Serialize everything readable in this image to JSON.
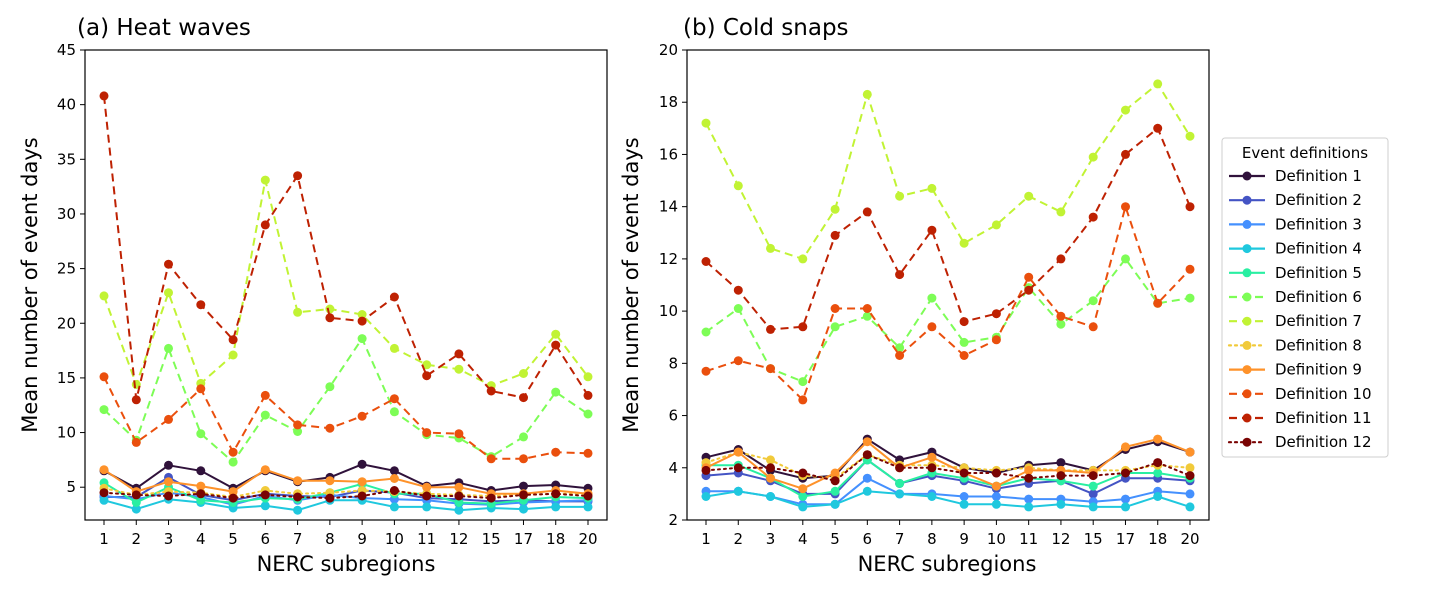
{
  "chart_data": [
    {
      "type": "line",
      "title": "(a) Heat waves",
      "xlabel": "NERC subregions",
      "ylabel": "Mean number of event days",
      "categories": [
        "1",
        "2",
        "3",
        "4",
        "5",
        "6",
        "7",
        "8",
        "9",
        "10",
        "11",
        "12",
        "15",
        "17",
        "18",
        "20"
      ],
      "ylim": [
        2,
        45
      ],
      "yticks": [
        5,
        10,
        15,
        20,
        25,
        30,
        35,
        40,
        45
      ],
      "grid": false,
      "series": [
        {
          "name": "Definition 1",
          "values": [
            6.5,
            4.9,
            7.0,
            6.5,
            4.9,
            6.5,
            5.5,
            5.9,
            7.1,
            6.5,
            5.1,
            5.4,
            4.7,
            5.1,
            5.2,
            4.9
          ]
        },
        {
          "name": "Definition 2",
          "values": [
            4.1,
            4.1,
            5.9,
            4.3,
            3.8,
            4.4,
            4.2,
            4.1,
            4.7,
            4.5,
            4.0,
            3.9,
            3.7,
            3.8,
            3.7,
            3.7
          ]
        },
        {
          "name": "Definition 3",
          "values": [
            4.2,
            3.9,
            4.5,
            4.1,
            3.4,
            4.2,
            3.8,
            4.3,
            4.0,
            3.9,
            3.8,
            3.5,
            3.4,
            3.6,
            3.7,
            3.8
          ]
        },
        {
          "name": "Definition 4",
          "values": [
            3.8,
            3.0,
            3.9,
            3.6,
            3.1,
            3.3,
            2.9,
            3.8,
            3.8,
            3.2,
            3.2,
            2.9,
            3.1,
            3.0,
            3.2,
            3.2
          ]
        },
        {
          "name": "Definition 5",
          "values": [
            5.4,
            3.6,
            5.0,
            3.8,
            3.6,
            4.0,
            3.9,
            4.5,
            5.3,
            4.4,
            4.4,
            3.6,
            3.5,
            3.8,
            4.1,
            4.0
          ]
        },
        {
          "name": "Definition 6",
          "values": [
            12.1,
            9.3,
            17.7,
            9.9,
            7.3,
            11.6,
            10.1,
            14.2,
            18.6,
            11.9,
            9.8,
            9.5,
            7.8,
            9.6,
            13.7,
            11.7
          ]
        },
        {
          "name": "Definition 7",
          "values": [
            22.5,
            14.4,
            22.8,
            14.5,
            17.1,
            33.1,
            21.0,
            21.3,
            20.8,
            17.7,
            16.2,
            15.8,
            14.3,
            15.4,
            19.0,
            15.1
          ]
        },
        {
          "name": "Definition 8",
          "values": [
            4.9,
            4.3,
            4.6,
            4.5,
            4.1,
            4.7,
            4.4,
            4.5,
            4.7,
            4.6,
            4.4,
            4.3,
            4.2,
            4.3,
            4.4,
            4.4
          ]
        },
        {
          "name": "Definition 9",
          "values": [
            6.6,
            4.6,
            5.5,
            5.1,
            4.6,
            6.6,
            5.6,
            5.6,
            5.5,
            5.8,
            5.0,
            5.0,
            4.4,
            4.4,
            4.7,
            4.4
          ]
        },
        {
          "name": "Definition 10",
          "values": [
            15.1,
            9.1,
            11.2,
            14.0,
            8.2,
            13.4,
            10.7,
            10.4,
            11.5,
            13.1,
            10.0,
            9.9,
            7.6,
            7.6,
            8.2,
            8.1
          ]
        },
        {
          "name": "Definition 11",
          "values": [
            40.8,
            13.0,
            25.4,
            21.7,
            18.5,
            29.0,
            33.5,
            20.5,
            20.2,
            22.4,
            15.2,
            17.2,
            13.8,
            13.2,
            18.0,
            13.4
          ]
        },
        {
          "name": "Definition 12",
          "values": [
            4.5,
            4.3,
            4.2,
            4.4,
            4.0,
            4.3,
            4.1,
            4.0,
            4.2,
            4.7,
            4.2,
            4.2,
            4.0,
            4.3,
            4.4,
            4.2
          ]
        }
      ]
    },
    {
      "type": "line",
      "title": "(b) Cold snaps",
      "xlabel": "NERC subregions",
      "ylabel": "Mean number of event days",
      "categories": [
        "1",
        "2",
        "3",
        "4",
        "5",
        "6",
        "7",
        "8",
        "9",
        "10",
        "11",
        "12",
        "15",
        "17",
        "18",
        "20"
      ],
      "ylim": [
        2,
        20
      ],
      "yticks": [
        2,
        4,
        6,
        8,
        10,
        12,
        14,
        16,
        18,
        20
      ],
      "grid": false,
      "series": [
        {
          "name": "Definition 1",
          "values": [
            4.4,
            4.7,
            3.9,
            3.6,
            3.7,
            5.1,
            4.3,
            4.6,
            4.0,
            3.8,
            4.1,
            4.2,
            3.9,
            4.7,
            5.0,
            4.6
          ]
        },
        {
          "name": "Definition 2",
          "values": [
            3.7,
            3.8,
            3.5,
            3.0,
            3.0,
            4.3,
            3.4,
            3.7,
            3.5,
            3.2,
            3.4,
            3.5,
            3.0,
            3.6,
            3.6,
            3.5
          ]
        },
        {
          "name": "Definition 3",
          "values": [
            3.1,
            3.1,
            2.9,
            2.6,
            2.6,
            3.6,
            3.0,
            3.0,
            2.9,
            2.9,
            2.8,
            2.8,
            2.7,
            2.8,
            3.1,
            3.0
          ]
        },
        {
          "name": "Definition 4",
          "values": [
            2.9,
            3.1,
            2.9,
            2.5,
            2.6,
            3.1,
            3.0,
            2.9,
            2.6,
            2.6,
            2.5,
            2.6,
            2.5,
            2.5,
            2.9,
            2.5
          ]
        },
        {
          "name": "Definition 5",
          "values": [
            4.1,
            4.1,
            3.6,
            2.9,
            3.1,
            4.3,
            3.4,
            3.8,
            3.6,
            3.3,
            3.6,
            3.5,
            3.3,
            3.8,
            3.8,
            3.6
          ]
        },
        {
          "name": "Definition 6",
          "values": [
            9.2,
            10.1,
            7.8,
            7.3,
            9.4,
            9.8,
            8.6,
            10.5,
            8.8,
            9.0,
            10.9,
            9.5,
            10.4,
            12.0,
            10.3,
            10.5
          ]
        },
        {
          "name": "Definition 7",
          "values": [
            17.2,
            14.8,
            12.4,
            12.0,
            13.9,
            18.3,
            14.4,
            14.7,
            12.6,
            13.3,
            14.4,
            13.8,
            15.9,
            17.7,
            18.7,
            16.7
          ]
        },
        {
          "name": "Definition 8",
          "values": [
            4.2,
            4.6,
            4.3,
            3.7,
            3.6,
            4.5,
            4.1,
            4.1,
            4.0,
            3.9,
            4.0,
            3.9,
            3.9,
            3.9,
            4.1,
            4.0
          ]
        },
        {
          "name": "Definition 9",
          "values": [
            4.0,
            4.6,
            3.6,
            3.2,
            3.8,
            5.0,
            4.0,
            4.4,
            3.8,
            3.3,
            3.9,
            3.9,
            3.8,
            4.8,
            5.1,
            4.6
          ]
        },
        {
          "name": "Definition 10",
          "values": [
            7.7,
            8.1,
            7.8,
            6.6,
            10.1,
            10.1,
            8.3,
            9.4,
            8.3,
            8.9,
            11.3,
            9.8,
            9.4,
            14.0,
            10.3,
            11.6
          ]
        },
        {
          "name": "Definition 11",
          "values": [
            11.9,
            10.8,
            9.3,
            9.4,
            12.9,
            13.8,
            11.4,
            13.1,
            9.6,
            9.9,
            10.8,
            12.0,
            13.6,
            16.0,
            17.0,
            14.0
          ]
        },
        {
          "name": "Definition 12",
          "values": [
            3.9,
            4.0,
            4.0,
            3.8,
            3.5,
            4.5,
            4.0,
            4.0,
            3.8,
            3.8,
            3.6,
            3.7,
            3.7,
            3.8,
            4.2,
            3.7
          ]
        }
      ]
    }
  ],
  "legend": {
    "title": "Event definitions",
    "placement": "right",
    "entries": [
      {
        "label": "Definition 1",
        "color": "#30123b",
        "style": "solid"
      },
      {
        "label": "Definition 2",
        "color": "#4454c4",
        "style": "solid"
      },
      {
        "label": "Definition 3",
        "color": "#4490fe",
        "style": "solid"
      },
      {
        "label": "Definition 4",
        "color": "#1fc8de",
        "style": "solid"
      },
      {
        "label": "Definition 5",
        "color": "#29efa2",
        "style": "solid"
      },
      {
        "label": "Definition 6",
        "color": "#7dfd56",
        "style": "dashed"
      },
      {
        "label": "Definition 7",
        "color": "#c1f334",
        "style": "dashed"
      },
      {
        "label": "Definition 8",
        "color": "#f1ca3a",
        "style": "dotted"
      },
      {
        "label": "Definition 9",
        "color": "#fe922a",
        "style": "solid"
      },
      {
        "label": "Definition 10",
        "color": "#ea4f0d",
        "style": "dashed"
      },
      {
        "label": "Definition 11",
        "color": "#be2102",
        "style": "dashed"
      },
      {
        "label": "Definition 12",
        "color": "#7a0403",
        "style": "dotted"
      }
    ]
  }
}
